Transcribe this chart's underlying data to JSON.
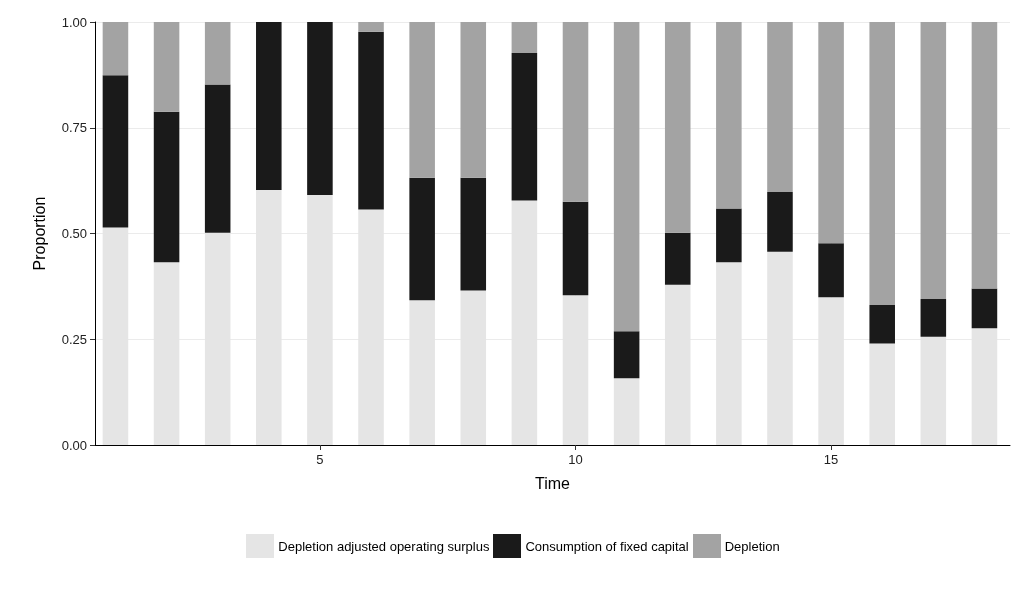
{
  "chart_data": {
    "type": "bar",
    "stacked": true,
    "xlabel": "Time",
    "ylabel": "Proportion",
    "x": [
      1,
      2,
      3,
      4,
      5,
      6,
      7,
      8,
      9,
      10,
      11,
      12,
      13,
      14,
      15,
      16,
      17,
      18
    ],
    "series": [
      {
        "name": "Depletion adjusted operating surplus",
        "color": "#e5e5e5",
        "values": [
          0.514,
          0.432,
          0.502,
          0.603,
          0.591,
          0.557,
          0.342,
          0.365,
          0.578,
          0.354,
          0.158,
          0.379,
          0.432,
          0.457,
          0.349,
          0.24,
          0.256,
          0.276
        ]
      },
      {
        "name": "Consumption of fixed capital",
        "color": "#1a1a1a",
        "values": [
          0.36,
          0.356,
          0.35,
          0.397,
          0.409,
          0.42,
          0.29,
          0.267,
          0.349,
          0.221,
          0.111,
          0.123,
          0.127,
          0.141,
          0.128,
          0.091,
          0.089,
          0.094
        ]
      },
      {
        "name": "Depletion",
        "color": "#a3a3a3",
        "values": [
          0.126,
          0.212,
          0.148,
          0,
          0,
          0.023,
          0.368,
          0.368,
          0.073,
          0.425,
          0.731,
          0.498,
          0.441,
          0.402,
          0.523,
          0.669,
          0.655,
          0.63
        ]
      }
    ],
    "xlim": [
      0.6,
      18.5
    ],
    "xticks": [
      5,
      10,
      15
    ],
    "ylim": [
      0,
      1
    ],
    "yticks": [
      {
        "value": 0,
        "label": "0.00"
      },
      {
        "value": 0.25,
        "label": "0.25"
      },
      {
        "value": 0.5,
        "label": "0.50"
      },
      {
        "value": 0.75,
        "label": "0.75"
      },
      {
        "value": 1,
        "label": "1.00"
      }
    ],
    "grid": true,
    "legend": "bottom"
  }
}
